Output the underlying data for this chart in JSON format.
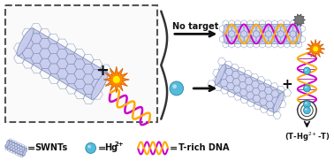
{
  "bg_color": "#ffffff",
  "nanotube_light": "#c8ccee",
  "nanotube_dark": "#8090b8",
  "dna_color1": "#cc00cc",
  "dna_color2": "#ffaa00",
  "expl_outer": "#ff8800",
  "expl_inner": "#ffee00",
  "gray_blob": "#888888",
  "mercury_color": "#55bbdd",
  "text_color": "#111111",
  "label_no_target": "No target",
  "label_swnt": "SWNTs",
  "label_hg": "Hg",
  "label_hg_super": "2+",
  "label_dna": "T-rich DNA",
  "label_t_complex": "(T-Hg",
  "label_t_complex_super": "2+",
  "label_t_complex_end": "-T)"
}
